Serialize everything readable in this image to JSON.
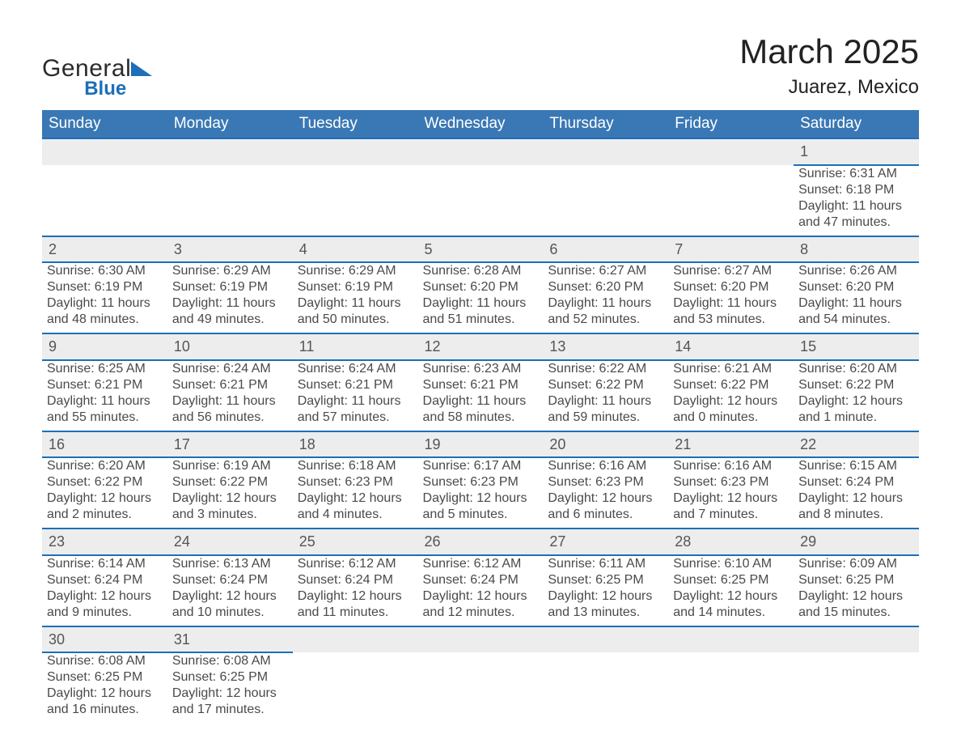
{
  "logo": {
    "word1": "General",
    "word2": "Blue"
  },
  "title": "March 2025",
  "location": "Juarez, Mexico",
  "colors": {
    "header_blue": "#3a78b5",
    "accent_blue": "#1c6fb8",
    "row_grey": "#ededed",
    "text": "#333333"
  },
  "typography": {
    "title_fontsize_pt": 32,
    "location_fontsize_pt": 18,
    "header_fontsize_pt": 14,
    "cell_fontsize_pt": 12
  },
  "dayHeaders": [
    "Sunday",
    "Monday",
    "Tuesday",
    "Wednesday",
    "Thursday",
    "Friday",
    "Saturday"
  ],
  "labels": {
    "sunrise": "Sunrise:",
    "sunset": "Sunset:",
    "daylight": "Daylight:"
  },
  "weeks": [
    [
      null,
      null,
      null,
      null,
      null,
      null,
      {
        "n": "1",
        "sunrise": "6:31 AM",
        "sunset": "6:18 PM",
        "daylight": "11 hours and 47 minutes."
      }
    ],
    [
      {
        "n": "2",
        "sunrise": "6:30 AM",
        "sunset": "6:19 PM",
        "daylight": "11 hours and 48 minutes."
      },
      {
        "n": "3",
        "sunrise": "6:29 AM",
        "sunset": "6:19 PM",
        "daylight": "11 hours and 49 minutes."
      },
      {
        "n": "4",
        "sunrise": "6:29 AM",
        "sunset": "6:19 PM",
        "daylight": "11 hours and 50 minutes."
      },
      {
        "n": "5",
        "sunrise": "6:28 AM",
        "sunset": "6:20 PM",
        "daylight": "11 hours and 51 minutes."
      },
      {
        "n": "6",
        "sunrise": "6:27 AM",
        "sunset": "6:20 PM",
        "daylight": "11 hours and 52 minutes."
      },
      {
        "n": "7",
        "sunrise": "6:27 AM",
        "sunset": "6:20 PM",
        "daylight": "11 hours and 53 minutes."
      },
      {
        "n": "8",
        "sunrise": "6:26 AM",
        "sunset": "6:20 PM",
        "daylight": "11 hours and 54 minutes."
      }
    ],
    [
      {
        "n": "9",
        "sunrise": "6:25 AM",
        "sunset": "6:21 PM",
        "daylight": "11 hours and 55 minutes."
      },
      {
        "n": "10",
        "sunrise": "6:24 AM",
        "sunset": "6:21 PM",
        "daylight": "11 hours and 56 minutes."
      },
      {
        "n": "11",
        "sunrise": "6:24 AM",
        "sunset": "6:21 PM",
        "daylight": "11 hours and 57 minutes."
      },
      {
        "n": "12",
        "sunrise": "6:23 AM",
        "sunset": "6:21 PM",
        "daylight": "11 hours and 58 minutes."
      },
      {
        "n": "13",
        "sunrise": "6:22 AM",
        "sunset": "6:22 PM",
        "daylight": "11 hours and 59 minutes."
      },
      {
        "n": "14",
        "sunrise": "6:21 AM",
        "sunset": "6:22 PM",
        "daylight": "12 hours and 0 minutes."
      },
      {
        "n": "15",
        "sunrise": "6:20 AM",
        "sunset": "6:22 PM",
        "daylight": "12 hours and 1 minute."
      }
    ],
    [
      {
        "n": "16",
        "sunrise": "6:20 AM",
        "sunset": "6:22 PM",
        "daylight": "12 hours and 2 minutes."
      },
      {
        "n": "17",
        "sunrise": "6:19 AM",
        "sunset": "6:22 PM",
        "daylight": "12 hours and 3 minutes."
      },
      {
        "n": "18",
        "sunrise": "6:18 AM",
        "sunset": "6:23 PM",
        "daylight": "12 hours and 4 minutes."
      },
      {
        "n": "19",
        "sunrise": "6:17 AM",
        "sunset": "6:23 PM",
        "daylight": "12 hours and 5 minutes."
      },
      {
        "n": "20",
        "sunrise": "6:16 AM",
        "sunset": "6:23 PM",
        "daylight": "12 hours and 6 minutes."
      },
      {
        "n": "21",
        "sunrise": "6:16 AM",
        "sunset": "6:23 PM",
        "daylight": "12 hours and 7 minutes."
      },
      {
        "n": "22",
        "sunrise": "6:15 AM",
        "sunset": "6:24 PM",
        "daylight": "12 hours and 8 minutes."
      }
    ],
    [
      {
        "n": "23",
        "sunrise": "6:14 AM",
        "sunset": "6:24 PM",
        "daylight": "12 hours and 9 minutes."
      },
      {
        "n": "24",
        "sunrise": "6:13 AM",
        "sunset": "6:24 PM",
        "daylight": "12 hours and 10 minutes."
      },
      {
        "n": "25",
        "sunrise": "6:12 AM",
        "sunset": "6:24 PM",
        "daylight": "12 hours and 11 minutes."
      },
      {
        "n": "26",
        "sunrise": "6:12 AM",
        "sunset": "6:24 PM",
        "daylight": "12 hours and 12 minutes."
      },
      {
        "n": "27",
        "sunrise": "6:11 AM",
        "sunset": "6:25 PM",
        "daylight": "12 hours and 13 minutes."
      },
      {
        "n": "28",
        "sunrise": "6:10 AM",
        "sunset": "6:25 PM",
        "daylight": "12 hours and 14 minutes."
      },
      {
        "n": "29",
        "sunrise": "6:09 AM",
        "sunset": "6:25 PM",
        "daylight": "12 hours and 15 minutes."
      }
    ],
    [
      {
        "n": "30",
        "sunrise": "6:08 AM",
        "sunset": "6:25 PM",
        "daylight": "12 hours and 16 minutes."
      },
      {
        "n": "31",
        "sunrise": "6:08 AM",
        "sunset": "6:25 PM",
        "daylight": "12 hours and 17 minutes."
      },
      null,
      null,
      null,
      null,
      null
    ]
  ]
}
